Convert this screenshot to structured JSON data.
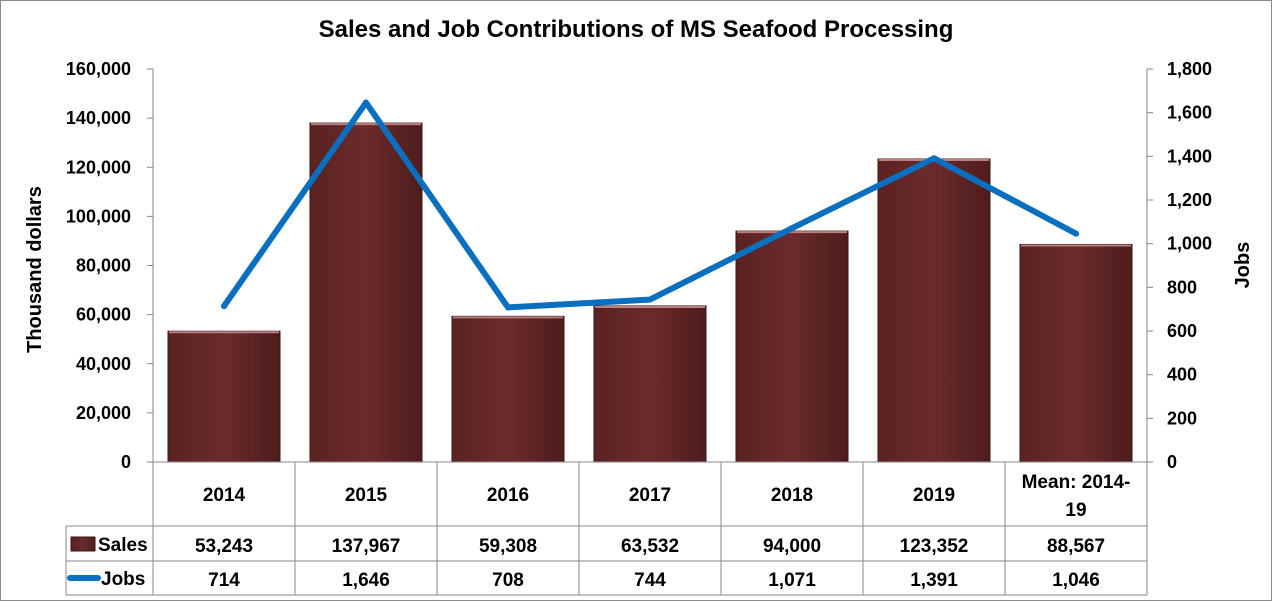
{
  "chart_data": {
    "type": "bar",
    "title": "Sales and Job Contributions of MS Seafood Processing",
    "categories": [
      "2014",
      "2015",
      "2016",
      "2017",
      "2018",
      "2019",
      "Mean: 2014-19"
    ],
    "category_lines": [
      [
        "2014"
      ],
      [
        "2015"
      ],
      [
        "2016"
      ],
      [
        "2017"
      ],
      [
        "2018"
      ],
      [
        "2019"
      ],
      [
        "Mean: 2014-",
        "19"
      ]
    ],
    "series": [
      {
        "name": "Sales",
        "type": "bar",
        "axis": "left",
        "color": "#6b2b2b",
        "values": [
          53243,
          137967,
          59308,
          63532,
          94000,
          123352,
          88567
        ],
        "labels": [
          "53,243",
          "137,967",
          "59,308",
          "63,532",
          "94,000",
          "123,352",
          "88,567"
        ]
      },
      {
        "name": "Jobs",
        "type": "line",
        "axis": "right",
        "color": "#0a6fbf",
        "values": [
          714,
          1646,
          708,
          744,
          1071,
          1391,
          1046
        ],
        "labels": [
          "714",
          "1,646",
          "708",
          "744",
          "1,071",
          "1,391",
          "1,046"
        ]
      }
    ],
    "ylabel": "Thousand dollars",
    "ylim": [
      0,
      160000
    ],
    "yticks": [
      "0",
      "20,000",
      "40,000",
      "60,000",
      "80,000",
      "100,000",
      "120,000",
      "140,000",
      "160,000"
    ],
    "y2label": "Jobs",
    "y2lim": [
      0,
      1800
    ],
    "y2ticks": [
      "0",
      "200",
      "400",
      "600",
      "800",
      "1,000",
      "1,200",
      "1,400",
      "1,600",
      "1,800"
    ],
    "data_table": true
  }
}
